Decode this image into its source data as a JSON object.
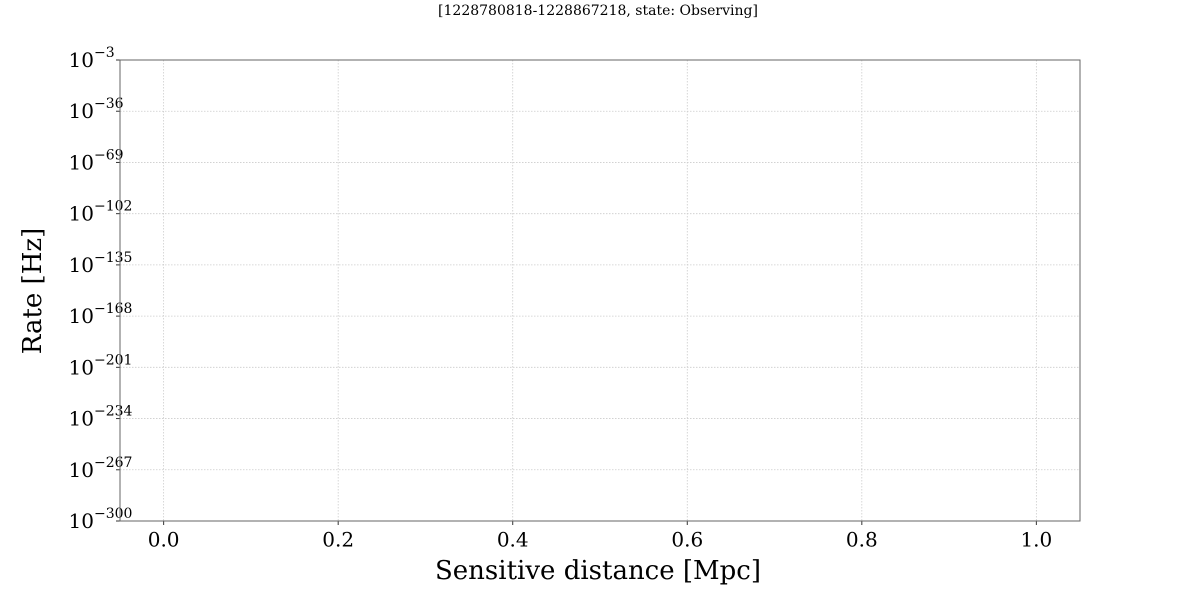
{
  "chart_data": {
    "type": "line",
    "title": "[1228780818-1228867218, state: Observing]",
    "x_label": "Sensitive distance [Mpc]",
    "y_label": "Rate [Hz]",
    "y_scale": "log",
    "grid": true,
    "xlim": [
      -0.05,
      1.05
    ],
    "xticks": [
      {
        "value": 0,
        "label": "0.0"
      },
      0.2,
      0.4,
      0.6,
      0.8,
      {
        "value": 1,
        "label": "1.0"
      }
    ],
    "ylim": [
      1e-300,
      0.001
    ],
    "yticks": [
      {
        "value": 1e-300,
        "label": "10",
        "exponent": "−300"
      },
      {
        "value": 1e-267,
        "label": "10",
        "exponent": "−267"
      },
      {
        "value": 1e-234,
        "label": "10",
        "exponent": "−234"
      },
      {
        "value": 1e-201,
        "label": "10",
        "exponent": "−201"
      },
      {
        "value": 1e-168,
        "label": "10",
        "exponent": "−168"
      },
      {
        "value": 1e-135,
        "label": "10",
        "exponent": "−135"
      },
      {
        "value": 1e-102,
        "label": "10",
        "exponent": "−102"
      },
      {
        "value": 1e-69,
        "label": "10",
        "exponent": "−69"
      },
      {
        "value": 1e-36,
        "label": "10",
        "exponent": "−36"
      },
      {
        "value": 0.001,
        "label": "10",
        "exponent": "−3"
      }
    ]
  }
}
